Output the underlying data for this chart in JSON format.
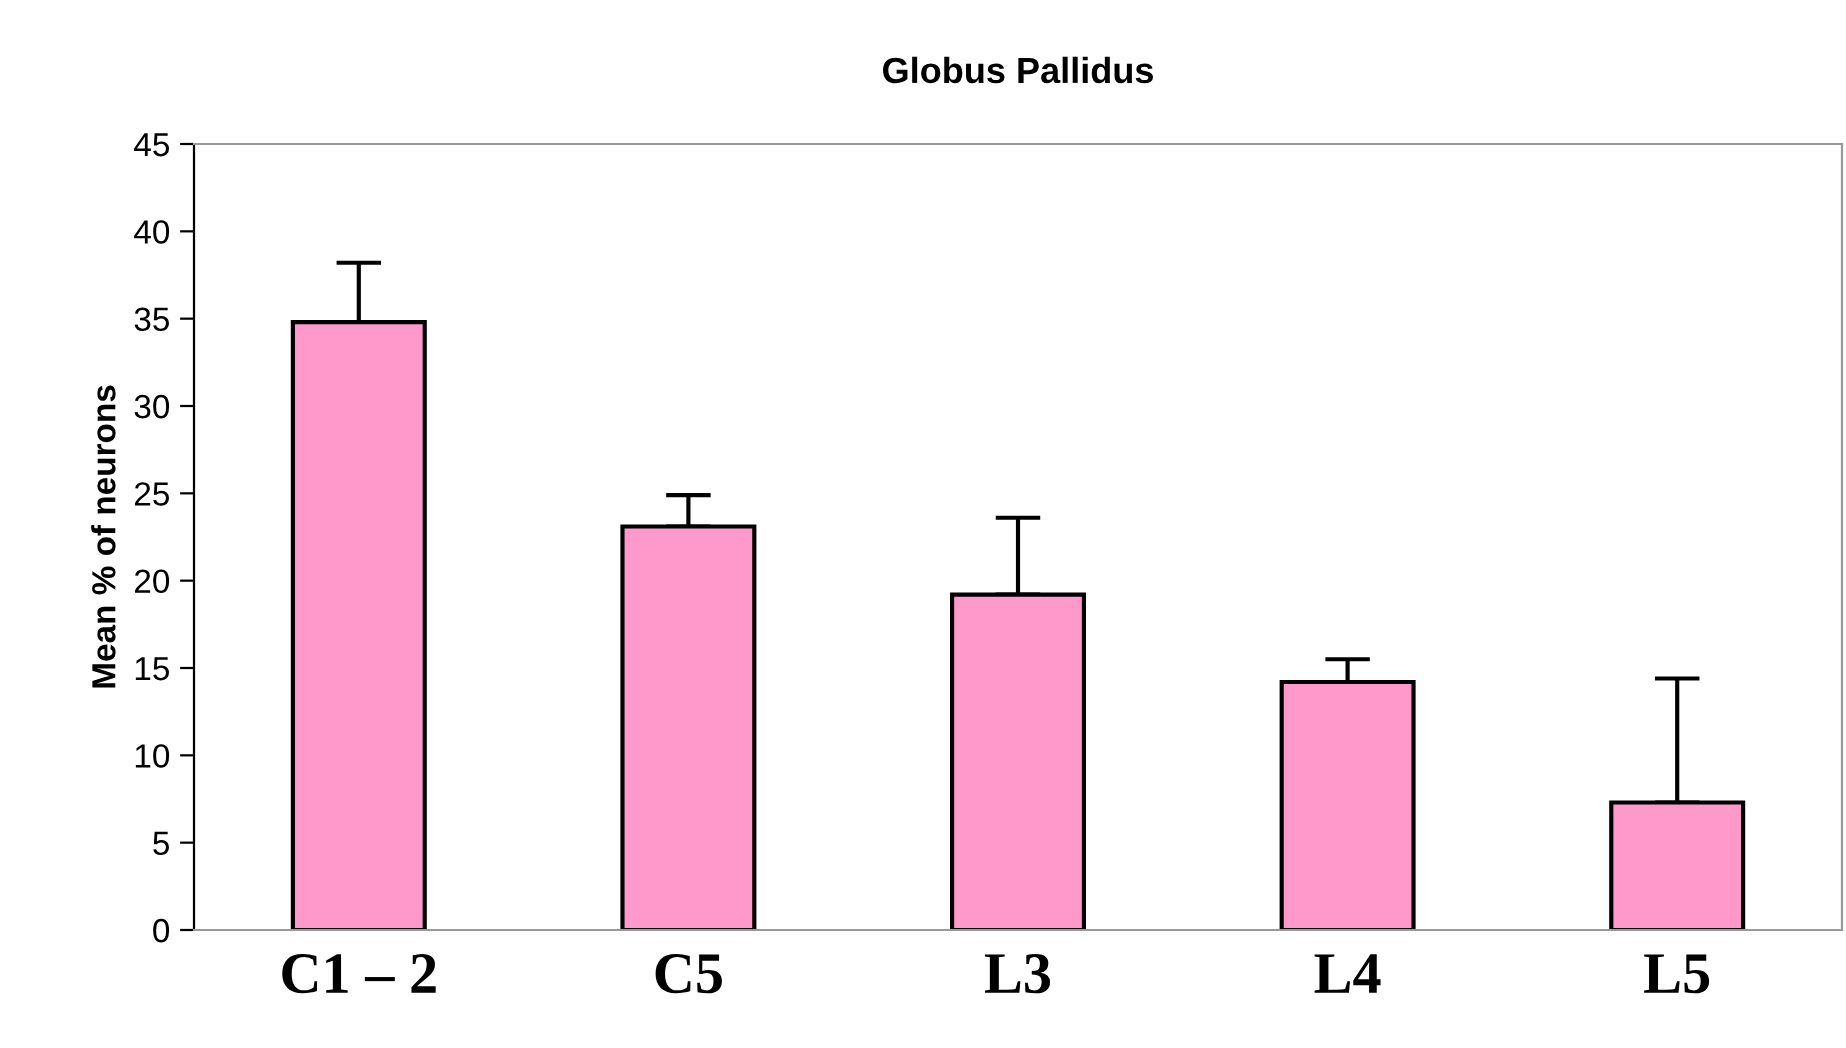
{
  "chart_data": {
    "type": "bar",
    "title": "Globus Pallidus",
    "ylabel": "Mean % of neurons",
    "categories": [
      "C1 – 2",
      "C5",
      "L3",
      "L4",
      "L5"
    ],
    "values": [
      34.8,
      23.1,
      19.2,
      14.2,
      7.3
    ],
    "errors": [
      [
        34.8,
        38.2
      ],
      [
        23.1,
        24.9
      ],
      [
        19.2,
        23.6
      ],
      [
        14.2,
        15.5
      ],
      [
        7.3,
        14.4
      ]
    ],
    "color": "#ff99cc",
    "ylim": [
      0,
      45
    ],
    "yticks": [
      0,
      5,
      10,
      15,
      20,
      25,
      30,
      35,
      40,
      45
    ],
    "grid": false
  }
}
